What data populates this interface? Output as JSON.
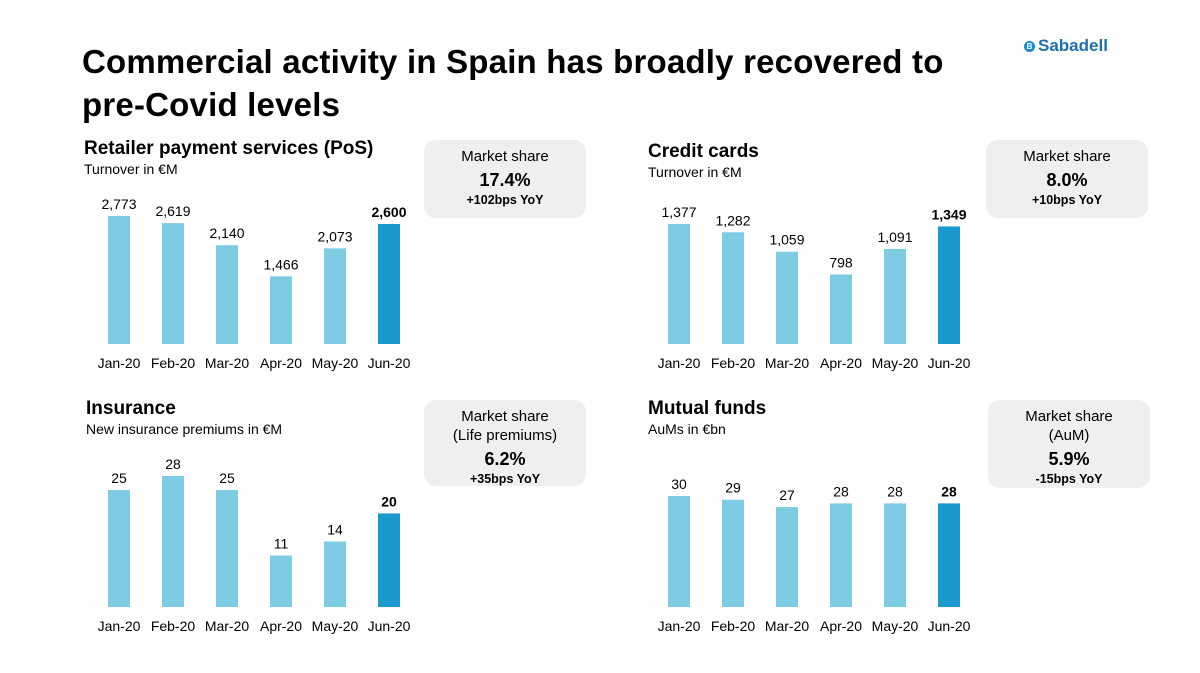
{
  "page": {
    "title": "Commercial activity in Spain has broadly recovered to pre-Covid levels",
    "brand": "Sabadell",
    "brand_mark": "B",
    "colors": {
      "bar_light": "#7dcce3",
      "bar_dark": "#1b98ce",
      "box_bg": "#efefef"
    }
  },
  "panels": [
    {
      "title": "Retailer payment services (PoS)",
      "subtitle": "Turnover in €M",
      "share": {
        "label1": "Market share",
        "label2": "",
        "value": "17.4%",
        "delta": "+102bps YoY"
      }
    },
    {
      "title": "Credit cards",
      "subtitle": "Turnover in €M",
      "share": {
        "label1": "Market share",
        "label2": "",
        "value": "8.0%",
        "delta": "+10bps YoY"
      }
    },
    {
      "title": "Insurance",
      "subtitle": "New insurance premiums in €M",
      "share": {
        "label1": "Market share",
        "label2": "(Life premiums)",
        "value": "6.2%",
        "delta": "+35bps YoY"
      }
    },
    {
      "title": "Mutual funds",
      "subtitle": "AuMs in €bn",
      "share": {
        "label1": "Market share",
        "label2": "(AuM)",
        "value": "5.9%",
        "delta": "-15bps YoY"
      }
    }
  ],
  "chart_data": [
    {
      "type": "bar",
      "title": "Retailer payment services (PoS)",
      "ylabel": "Turnover in €M",
      "categories": [
        "Jan-20",
        "Feb-20",
        "Mar-20",
        "Apr-20",
        "May-20",
        "Jun-20"
      ],
      "values": [
        2773,
        2619,
        2140,
        1466,
        2073,
        2600
      ],
      "labels": [
        "2,773",
        "2,619",
        "2,140",
        "1,466",
        "2,073",
        "2,600"
      ],
      "highlight_index": 5,
      "ylim": [
        0,
        2773
      ]
    },
    {
      "type": "bar",
      "title": "Credit cards",
      "ylabel": "Turnover in €M",
      "categories": [
        "Jan-20",
        "Feb-20",
        "Mar-20",
        "Apr-20",
        "May-20",
        "Jun-20"
      ],
      "values": [
        1377,
        1282,
        1059,
        798,
        1091,
        1349
      ],
      "labels": [
        "1,377",
        "1,282",
        "1,059",
        "798",
        "1,091",
        "1,349"
      ],
      "highlight_index": 5,
      "ylim": [
        0,
        1377
      ]
    },
    {
      "type": "bar",
      "title": "Insurance",
      "ylabel": "New insurance premiums in €M",
      "categories": [
        "Jan-20",
        "Feb-20",
        "Mar-20",
        "Apr-20",
        "May-20",
        "Jun-20"
      ],
      "values": [
        25,
        28,
        25,
        11,
        14,
        20
      ],
      "labels": [
        "25",
        "28",
        "25",
        "11",
        "14",
        "20"
      ],
      "highlight_index": 5,
      "ylim": [
        0,
        28
      ]
    },
    {
      "type": "bar",
      "title": "Mutual funds",
      "ylabel": "AuMs in €bn",
      "categories": [
        "Jan-20",
        "Feb-20",
        "Mar-20",
        "Apr-20",
        "May-20",
        "Jun-20"
      ],
      "values": [
        30,
        29,
        27,
        28,
        28,
        28
      ],
      "labels": [
        "30",
        "29",
        "27",
        "28",
        "28",
        "28"
      ],
      "highlight_index": 5,
      "ylim": [
        0,
        30
      ]
    }
  ]
}
